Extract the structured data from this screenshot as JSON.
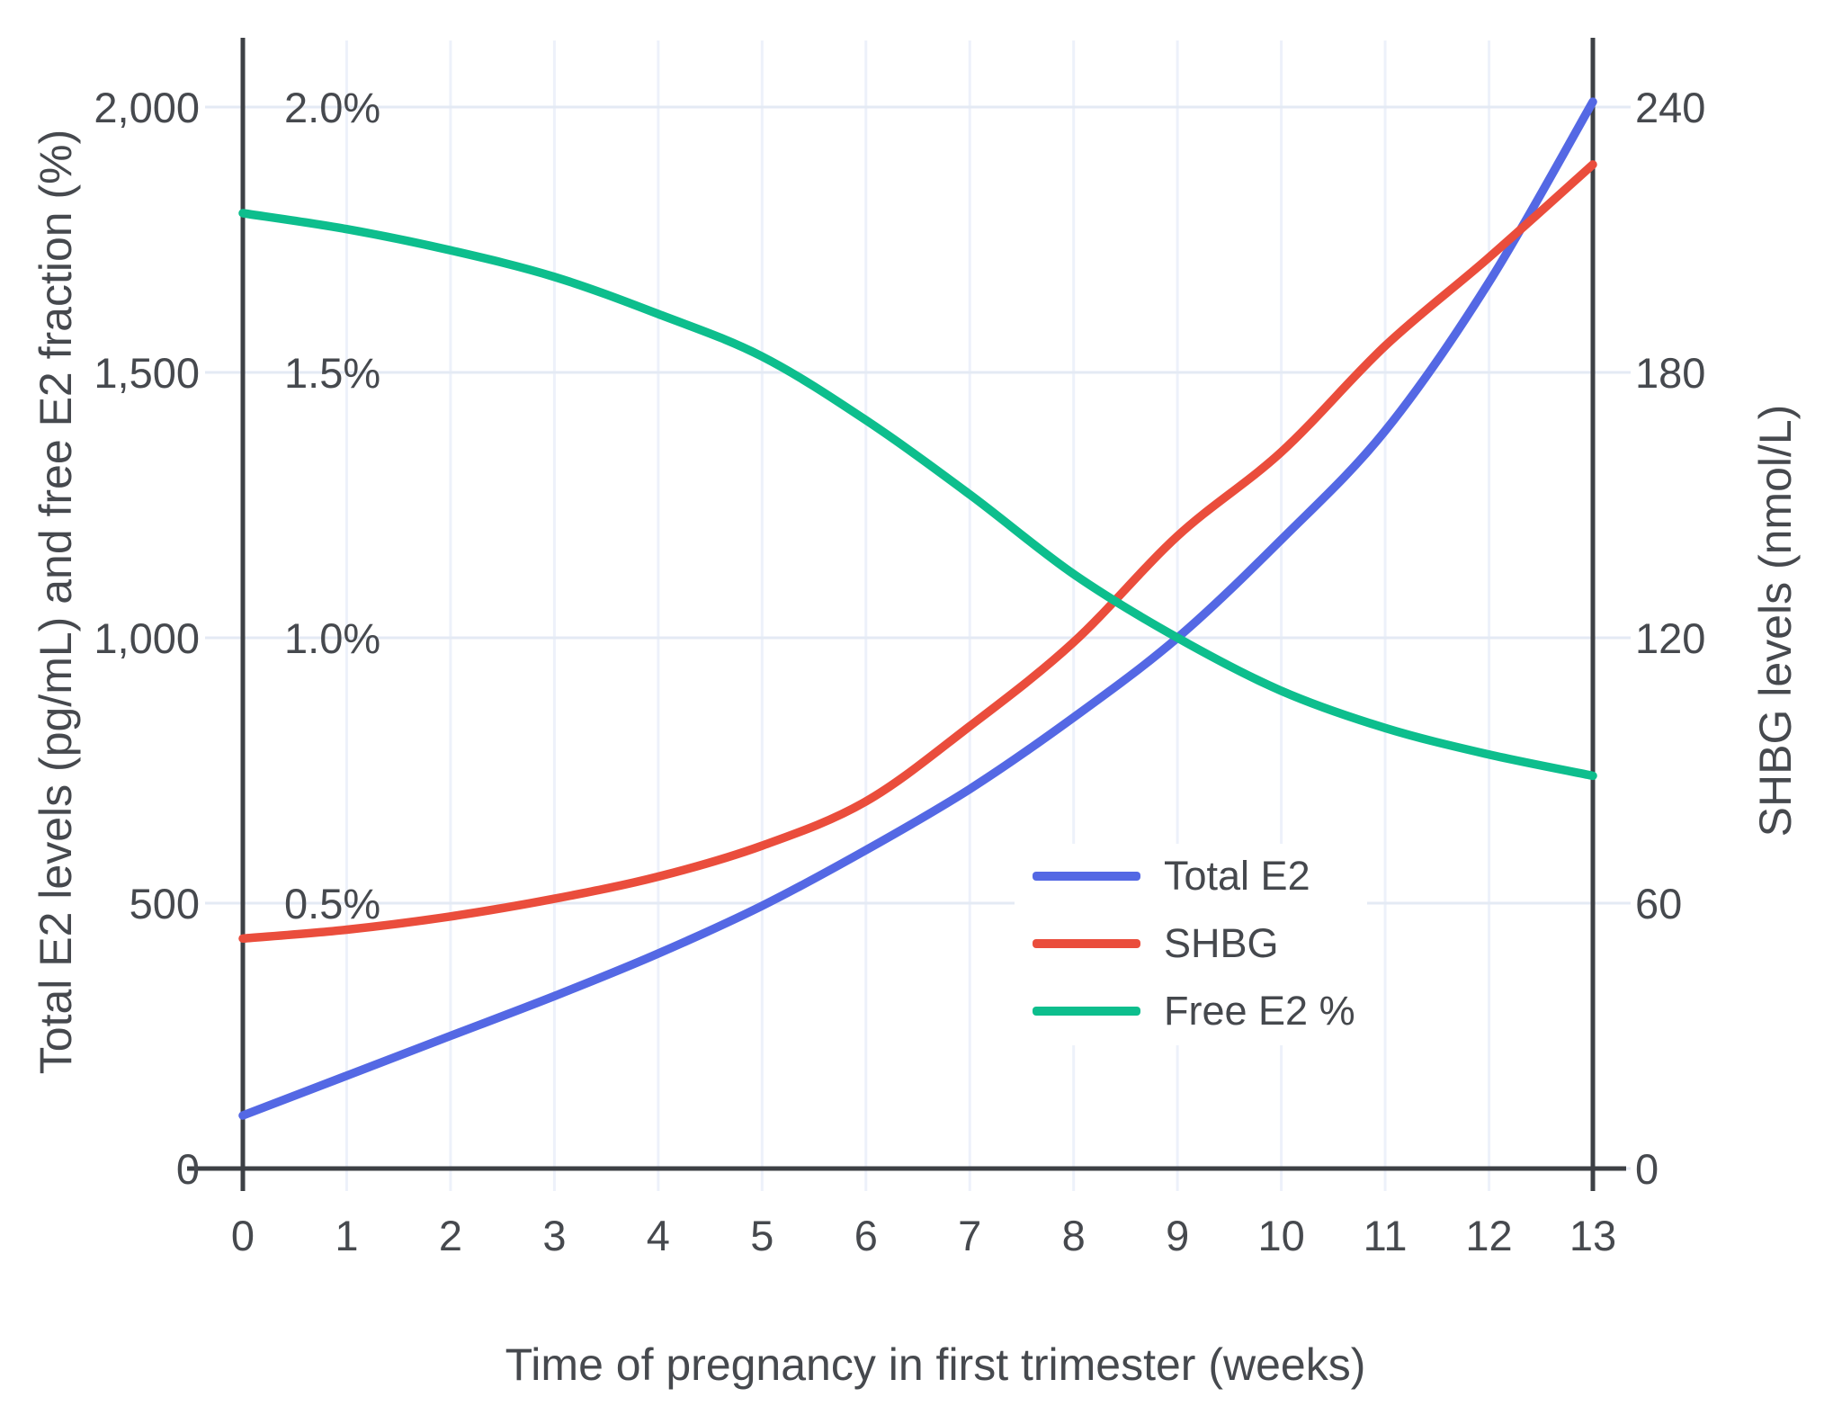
{
  "chart": {
    "titles": {
      "x": "Time of pregnancy in first trimester (weeks)",
      "y_left": "Total E2 levels (pg/mL) and free E2 fraction (%)",
      "y_right": "SHBG levels (nmol/L)"
    },
    "legend": [
      {
        "label": "Total E2",
        "color": "#5468e4"
      },
      {
        "label": "SHBG",
        "color": "#ea4d3c"
      },
      {
        "label": "Free E2 %",
        "color": "#0dbe8d"
      }
    ],
    "colors": {
      "total_e2": "#5468e4",
      "shbg": "#ea4d3c",
      "free_e2": "#0dbe8d",
      "axis": "#3d4045",
      "text": "#46494e",
      "grid_h": "#e4eaf4",
      "grid_v": "#edf1fa"
    },
    "axes": {
      "x_ticks": [
        "0",
        "1",
        "2",
        "3",
        "4",
        "5",
        "6",
        "7",
        "8",
        "9",
        "10",
        "11",
        "12",
        "13"
      ],
      "y_left_ticks": [
        {
          "v": 0,
          "label": "0"
        },
        {
          "v": 500,
          "label": "500"
        },
        {
          "v": 1000,
          "label": "1,000"
        },
        {
          "v": 1500,
          "label": "1,500"
        },
        {
          "v": 2000,
          "label": "2,000"
        }
      ],
      "y_percent_ticks": [
        {
          "v": 0.5,
          "label": "0.5%"
        },
        {
          "v": 1.0,
          "label": "1.0%"
        },
        {
          "v": 1.5,
          "label": "1.5%"
        },
        {
          "v": 2.0,
          "label": "2.0%"
        }
      ],
      "y_right_ticks": [
        {
          "v": 0,
          "label": "0"
        },
        {
          "v": 60,
          "label": "60"
        },
        {
          "v": 120,
          "label": "120"
        },
        {
          "v": 180,
          "label": "180"
        },
        {
          "v": 240,
          "label": "240"
        }
      ]
    }
  },
  "chart_data": {
    "type": "line",
    "title": "",
    "xlabel": "Time of pregnancy in first trimester (weeks)",
    "ylabel_left": "Total E2 levels (pg/mL) and free E2 fraction (%)",
    "ylabel_right": "SHBG levels (nmol/L)",
    "x": [
      0,
      1,
      2,
      3,
      4,
      5,
      6,
      7,
      8,
      9,
      10,
      11,
      12,
      13
    ],
    "xlim": [
      0,
      13
    ],
    "ylim_left_pgml": [
      0,
      2000
    ],
    "ylim_left_percent": [
      0,
      2.0
    ],
    "ylim_right_nmol": [
      0,
      240
    ],
    "grid": true,
    "legend_position": "inside lower-right",
    "series": [
      {
        "name": "Total E2",
        "axis": "left",
        "unit": "pg/mL",
        "color": "#5468e4",
        "values": [
          100,
          175,
          250,
          325,
          405,
          495,
          600,
          715,
          850,
          1000,
          1185,
          1390,
          1670,
          2010
        ]
      },
      {
        "name": "SHBG",
        "axis": "right",
        "unit": "nmol/L",
        "color": "#ea4d3c",
        "values": [
          52,
          54,
          57,
          61,
          66,
          73,
          83,
          100,
          119,
          143,
          162,
          186,
          206,
          227
        ]
      },
      {
        "name": "Free E2 %",
        "axis": "left-percent",
        "unit": "%",
        "color": "#0dbe8d",
        "values": [
          1.8,
          1.77,
          1.73,
          1.68,
          1.61,
          1.53,
          1.41,
          1.27,
          1.12,
          1.0,
          0.9,
          0.83,
          0.78,
          0.74
        ]
      }
    ]
  }
}
